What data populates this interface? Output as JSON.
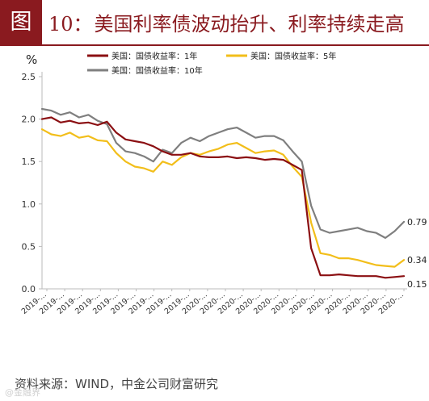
{
  "figure": {
    "badge": "图",
    "title_number": "10：",
    "title_text": "美国利率债波动抬升、利率持续走高",
    "source": "资料来源：WIND，中金公司财富研究",
    "watermark": "@金融界"
  },
  "chart_data": {
    "type": "line",
    "title": "",
    "ylabel": "%",
    "xlabel": "",
    "ylim": [
      0,
      2.5
    ],
    "yticks": [
      "0.0",
      "0.5",
      "1.0",
      "1.5",
      "2.0",
      "2.5"
    ],
    "x_tick_labels": [
      "2019-...",
      "2019-...",
      "2019-...",
      "2019-...",
      "2019-...",
      "2019-...",
      "2019-...",
      "2019-...",
      "2019-...",
      "2020-...",
      "2020-...",
      "2020-...",
      "2020-...",
      "2020-...",
      "2020-...",
      "2020-...",
      "2020-...",
      "2020-...",
      "2020-...",
      "2020-...",
      "2020-..."
    ],
    "grid": false,
    "legend_position": "top",
    "x_points": 40,
    "series": [
      {
        "name": "美国：国债收益率：1年",
        "color": "#8b0f12",
        "end_label": "0.15",
        "values": [
          2.0,
          2.02,
          1.96,
          1.98,
          1.95,
          1.96,
          1.93,
          1.97,
          1.84,
          1.76,
          1.74,
          1.72,
          1.68,
          1.62,
          1.58,
          1.58,
          1.6,
          1.56,
          1.55,
          1.55,
          1.56,
          1.54,
          1.55,
          1.54,
          1.52,
          1.53,
          1.52,
          1.46,
          1.4,
          0.48,
          0.16,
          0.16,
          0.17,
          0.16,
          0.15,
          0.15,
          0.15,
          0.13,
          0.14,
          0.15
        ]
      },
      {
        "name": "美国：国债收益率：5年",
        "color": "#f2be1a",
        "end_label": "0.34",
        "values": [
          1.88,
          1.82,
          1.8,
          1.84,
          1.78,
          1.8,
          1.75,
          1.74,
          1.6,
          1.5,
          1.44,
          1.42,
          1.38,
          1.5,
          1.46,
          1.55,
          1.6,
          1.58,
          1.62,
          1.65,
          1.7,
          1.72,
          1.66,
          1.6,
          1.62,
          1.63,
          1.58,
          1.44,
          1.32,
          0.78,
          0.42,
          0.4,
          0.36,
          0.36,
          0.34,
          0.31,
          0.28,
          0.27,
          0.26,
          0.34
        ]
      },
      {
        "name": "美国：国债收益率：10年",
        "color": "#7f7f7f",
        "end_label": "0.79",
        "values": [
          2.12,
          2.1,
          2.05,
          2.08,
          2.02,
          2.05,
          1.98,
          1.94,
          1.72,
          1.62,
          1.6,
          1.56,
          1.5,
          1.64,
          1.6,
          1.72,
          1.78,
          1.74,
          1.8,
          1.84,
          1.88,
          1.9,
          1.84,
          1.78,
          1.8,
          1.8,
          1.75,
          1.62,
          1.5,
          0.98,
          0.7,
          0.66,
          0.68,
          0.7,
          0.72,
          0.68,
          0.66,
          0.6,
          0.68,
          0.79
        ]
      }
    ]
  }
}
